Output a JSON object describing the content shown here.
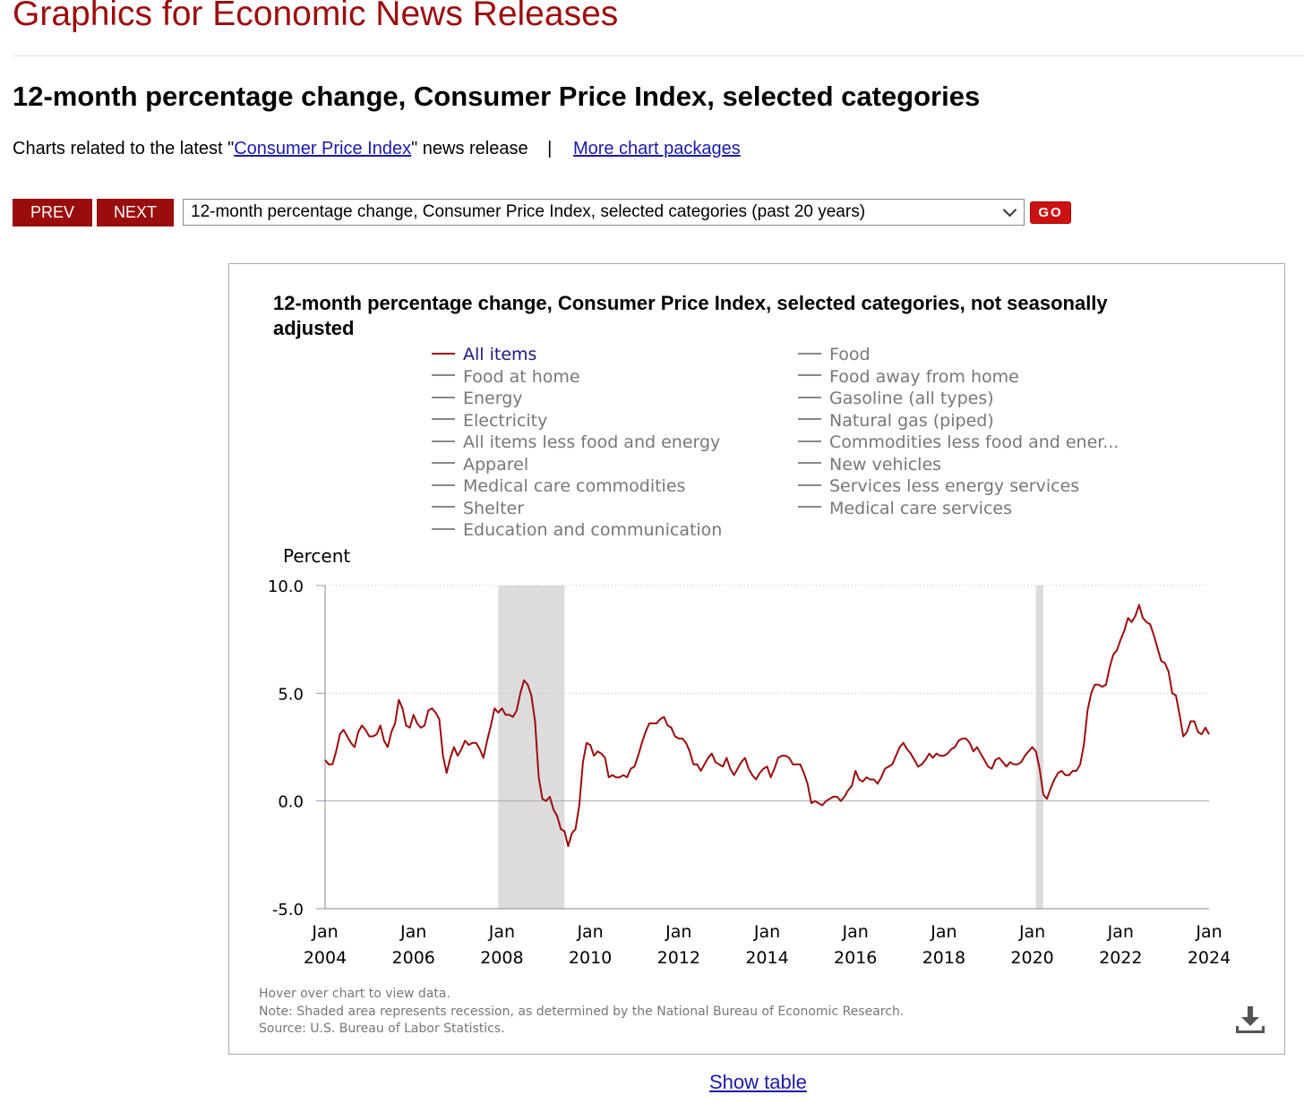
{
  "site_title": "Graphics for Economic News Releases",
  "page_title": "12-month percentage change, Consumer Price Index, selected categories",
  "related": {
    "prefix": "Charts related to the latest \"",
    "link": "Consumer Price Index",
    "suffix": "\" news release",
    "separator": "|",
    "more_link": "More chart packages"
  },
  "nav": {
    "prev_label": "PREV",
    "next_label": "NEXT",
    "selected_chart": "12-month percentage change, Consumer Price Index, selected categories (past 20 years)",
    "go_label": "GO"
  },
  "icons": {
    "dropdown": "chevron-down-icon",
    "download": "download-icon"
  },
  "colors": {
    "brand": "#9b0d0d",
    "series": "#9b0d0d",
    "recession": "#dcdcdc",
    "link": "#1a1aa6",
    "legend_inactive": "#777777"
  },
  "notes": [
    "Hover over chart to view data.",
    "Note: Shaded area represents recession, as determined by the National Bureau of Economic Research.",
    "Source: U.S. Bureau of Labor Statistics."
  ],
  "show_table_label": "Show table",
  "chart_data": {
    "type": "line",
    "title": "12-month percentage change, Consumer Price Index, selected categories, not seasonally adjusted",
    "ylabel": "Percent",
    "xlabel": "",
    "ylim": [
      -5.0,
      10.0
    ],
    "yticks": [
      "10.0",
      "5.0",
      "0.0",
      "-5.0"
    ],
    "xlim": [
      "2004-01",
      "2024-01"
    ],
    "xticks": [
      {
        "month": "Jan",
        "year": "2004"
      },
      {
        "month": "Jan",
        "year": "2006"
      },
      {
        "month": "Jan",
        "year": "2008"
      },
      {
        "month": "Jan",
        "year": "2010"
      },
      {
        "month": "Jan",
        "year": "2012"
      },
      {
        "month": "Jan",
        "year": "2014"
      },
      {
        "month": "Jan",
        "year": "2016"
      },
      {
        "month": "Jan",
        "year": "2018"
      },
      {
        "month": "Jan",
        "year": "2020"
      },
      {
        "month": "Jan",
        "year": "2022"
      },
      {
        "month": "Jan",
        "year": "2024"
      }
    ],
    "grid": "horizontal dotted",
    "legend_position": "top",
    "legend": {
      "left": [
        "All items",
        "Food at home",
        "Energy",
        "Electricity",
        "All items less food and energy",
        "Apparel",
        "Medical care commodities",
        "Shelter",
        "Education and communication"
      ],
      "right": [
        "Food",
        "Food away from home",
        "Gasoline (all types)",
        "Natural gas (piped)",
        "Commodities less food and ener...",
        "New vehicles",
        "Services less energy services",
        "Medical care services"
      ]
    },
    "active_series": "All items",
    "recessions": [
      [
        "2007-12",
        "2009-06"
      ],
      [
        "2020-02",
        "2020-04"
      ]
    ],
    "series": [
      {
        "name": "All items",
        "start": "2004-01",
        "frequency": "monthly",
        "values": [
          1.9,
          1.7,
          1.7,
          2.3,
          3.1,
          3.3,
          3.0,
          2.7,
          2.5,
          3.2,
          3.5,
          3.3,
          3.0,
          3.0,
          3.1,
          3.5,
          2.8,
          2.5,
          3.2,
          3.6,
          4.7,
          4.3,
          3.5,
          3.4,
          4.0,
          3.6,
          3.4,
          3.5,
          4.2,
          4.3,
          4.1,
          3.8,
          2.1,
          1.3,
          2.0,
          2.5,
          2.1,
          2.4,
          2.8,
          2.6,
          2.7,
          2.7,
          2.4,
          2.0,
          2.8,
          3.5,
          4.3,
          4.1,
          4.3,
          4.0,
          4.0,
          3.9,
          4.2,
          5.0,
          5.6,
          5.4,
          4.9,
          3.7,
          1.1,
          0.1,
          0.0,
          0.2,
          -0.4,
          -0.7,
          -1.3,
          -1.4,
          -2.1,
          -1.5,
          -1.3,
          -0.2,
          1.8,
          2.7,
          2.6,
          2.1,
          2.3,
          2.2,
          2.0,
          1.1,
          1.2,
          1.1,
          1.1,
          1.2,
          1.1,
          1.5,
          1.6,
          2.1,
          2.7,
          3.2,
          3.6,
          3.6,
          3.6,
          3.8,
          3.9,
          3.5,
          3.4,
          3.0,
          2.9,
          2.9,
          2.7,
          2.3,
          1.7,
          1.7,
          1.4,
          1.7,
          2.0,
          2.2,
          1.8,
          1.7,
          1.6,
          2.0,
          1.5,
          1.2,
          1.5,
          1.8,
          2.0,
          1.5,
          1.2,
          1.0,
          1.3,
          1.5,
          1.6,
          1.1,
          1.5,
          2.0,
          2.1,
          2.1,
          2.0,
          1.7,
          1.7,
          1.7,
          1.3,
          0.8,
          -0.1,
          0.0,
          -0.1,
          -0.2,
          0.0,
          0.1,
          0.2,
          0.2,
          0.0,
          0.2,
          0.5,
          0.7,
          1.4,
          1.0,
          0.9,
          1.1,
          1.0,
          1.0,
          0.8,
          1.1,
          1.5,
          1.6,
          1.7,
          2.1,
          2.5,
          2.7,
          2.4,
          2.2,
          1.9,
          1.6,
          1.7,
          1.9,
          2.2,
          2.0,
          2.2,
          2.1,
          2.1,
          2.2,
          2.4,
          2.5,
          2.8,
          2.9,
          2.9,
          2.7,
          2.3,
          2.5,
          2.2,
          1.9,
          1.6,
          1.5,
          1.9,
          2.0,
          1.8,
          1.6,
          1.8,
          1.7,
          1.7,
          1.8,
          2.1,
          2.3,
          2.5,
          2.3,
          1.5,
          0.3,
          0.1,
          0.6,
          1.0,
          1.3,
          1.4,
          1.2,
          1.2,
          1.4,
          1.4,
          1.7,
          2.6,
          4.2,
          5.0,
          5.4,
          5.4,
          5.3,
          5.4,
          6.2,
          6.8,
          7.0,
          7.5,
          7.9,
          8.5,
          8.3,
          8.6,
          9.1,
          8.5,
          8.3,
          8.2,
          7.7,
          7.1,
          6.5,
          6.4,
          6.0,
          5.0,
          4.9,
          4.0,
          3.0,
          3.2,
          3.7,
          3.7,
          3.2,
          3.1,
          3.4,
          3.1
        ]
      }
    ]
  }
}
